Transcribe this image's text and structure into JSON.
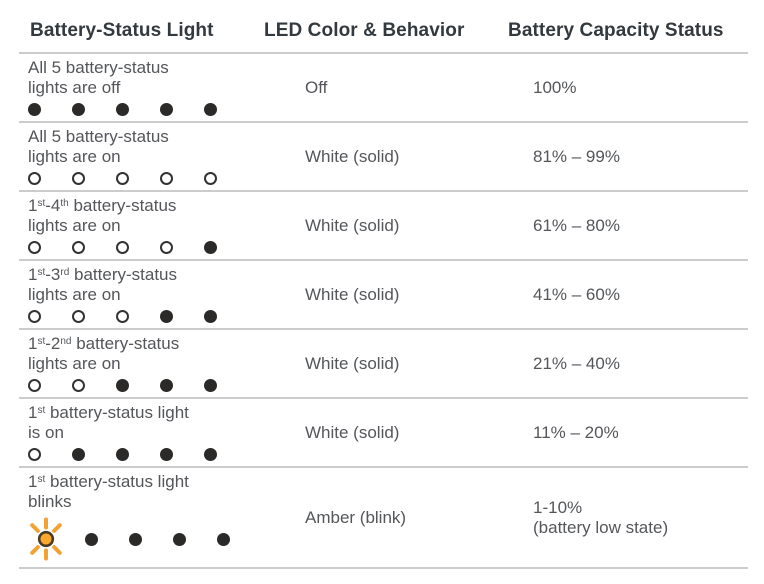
{
  "colors": {
    "header_text": "#333a3f",
    "body_text": "#54565a",
    "divider": "#cbcccd",
    "dot_fill": "#2b2a29",
    "dot_ring": "#333333",
    "amber_ray": "#f2a233",
    "amber_fill": "#fba92e",
    "amber_ring": "#4a3c22"
  },
  "table": {
    "columns": [
      "Battery-Status Light",
      "LED Color & Behavior",
      "Battery Capacity Status"
    ],
    "rows": [
      {
        "light": [
          "All 5 battery-status",
          "lights are off"
        ],
        "dots": [
          "filled",
          "filled",
          "filled",
          "filled",
          "filled"
        ],
        "led": "Off",
        "capacity": [
          "100%"
        ]
      },
      {
        "light": [
          "All 5 battery-status",
          "lights are on"
        ],
        "dots": [
          "open",
          "open",
          "open",
          "open",
          "open"
        ],
        "led": "White (solid)",
        "capacity": [
          "81% – 99%"
        ]
      },
      {
        "light": [
          "1^st^-4^th^ battery-status",
          "lights are on"
        ],
        "dots": [
          "open",
          "open",
          "open",
          "open",
          "filled"
        ],
        "led": "White (solid)",
        "capacity": [
          "61% – 80%"
        ]
      },
      {
        "light": [
          "1^st^-3^rd^ battery-status",
          "lights are on"
        ],
        "dots": [
          "open",
          "open",
          "open",
          "filled",
          "filled"
        ],
        "led": "White (solid)",
        "capacity": [
          "41% – 60%"
        ]
      },
      {
        "light": [
          "1^st^-2^nd^ battery-status",
          "lights are on"
        ],
        "dots": [
          "open",
          "open",
          "filled",
          "filled",
          "filled"
        ],
        "led": "White (solid)",
        "capacity": [
          "21% – 40%"
        ]
      },
      {
        "light": [
          "1^st^ battery-status light",
          "is on"
        ],
        "dots": [
          "open",
          "filled",
          "filled",
          "filled",
          "filled"
        ],
        "led": "White (solid)",
        "capacity": [
          "11% – 20%"
        ]
      },
      {
        "light": [
          "1^st^ battery-status light",
          "blinks"
        ],
        "dots": [
          "blink",
          "filled",
          "filled",
          "filled",
          "filled"
        ],
        "led": "Amber (blink)",
        "capacity": [
          "1-10%",
          "(battery low state)"
        ]
      }
    ]
  }
}
